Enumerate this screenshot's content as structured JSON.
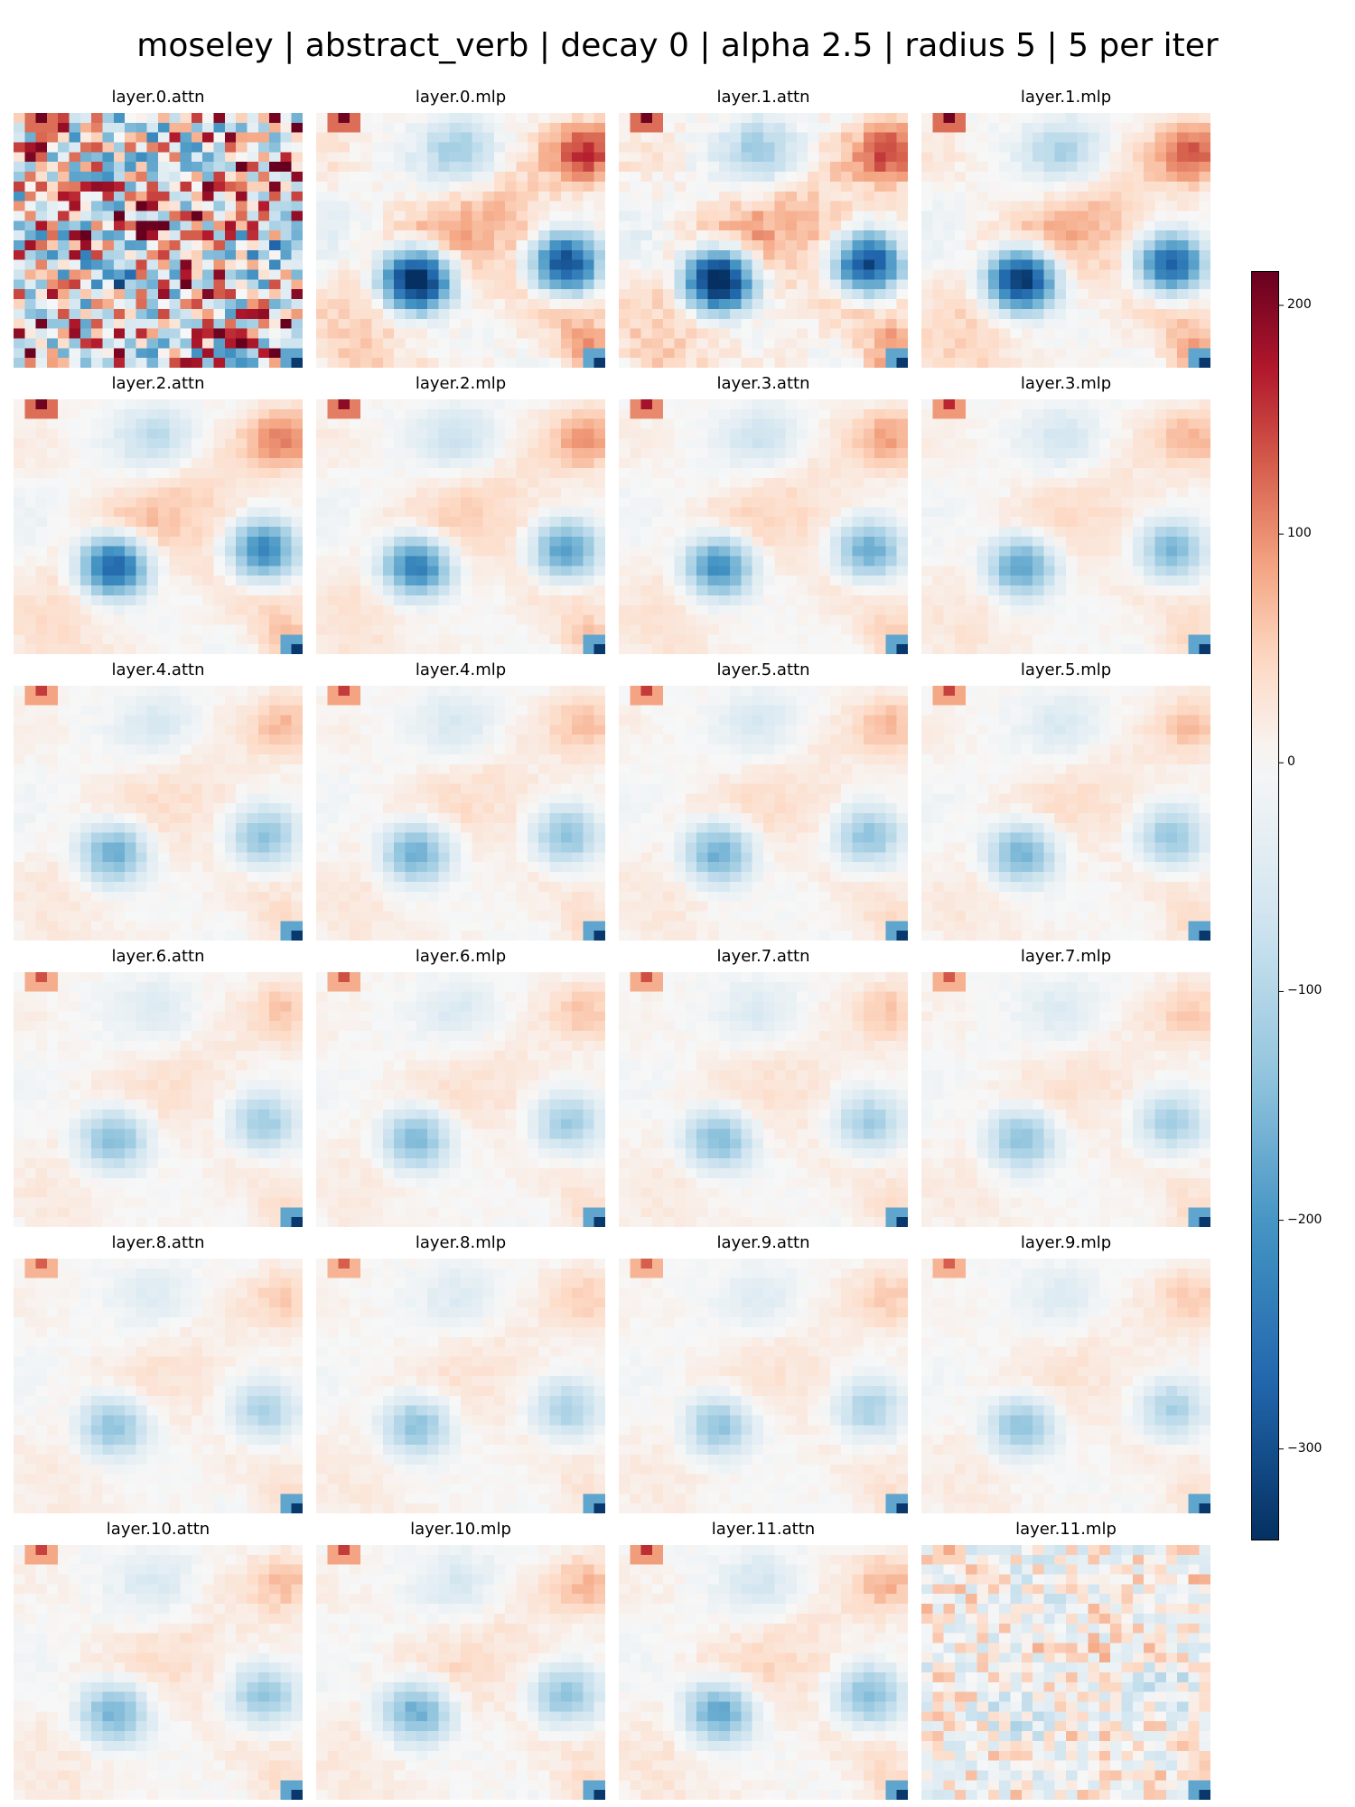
{
  "chart_data": {
    "type": "heatmap",
    "title": "moseley | abstract_verb | decay 0 | alpha 2.5 | radius 5 | 5 per iter",
    "grid_size": 26,
    "colormap": "RdBu_r",
    "vmin": -340,
    "vmax": 215,
    "colorbar_ticks": [
      {
        "value": 200,
        "label": "200"
      },
      {
        "value": 100,
        "label": "100"
      },
      {
        "value": 0,
        "label": "0"
      },
      {
        "value": -100,
        "label": "−100"
      },
      {
        "value": -200,
        "label": "−200"
      },
      {
        "value": -300,
        "label": "−300"
      }
    ],
    "panels": [
      {
        "title": "layer.0.attn",
        "strength": 1.15,
        "noise": 1.0
      },
      {
        "title": "layer.0.mlp",
        "strength": 1.2,
        "noise": 0.08
      },
      {
        "title": "layer.1.attn",
        "strength": 1.2,
        "noise": 0.1
      },
      {
        "title": "layer.1.mlp",
        "strength": 1.05,
        "noise": 0.06
      },
      {
        "title": "layer.2.attn",
        "strength": 0.85,
        "noise": 0.04
      },
      {
        "title": "layer.2.mlp",
        "strength": 0.72,
        "noise": 0.04
      },
      {
        "title": "layer.3.attn",
        "strength": 0.66,
        "noise": 0.04
      },
      {
        "title": "layer.3.mlp",
        "strength": 0.58,
        "noise": 0.04
      },
      {
        "title": "layer.4.attn",
        "strength": 0.52,
        "noise": 0.04
      },
      {
        "title": "layer.4.mlp",
        "strength": 0.52,
        "noise": 0.04
      },
      {
        "title": "layer.5.attn",
        "strength": 0.52,
        "noise": 0.04
      },
      {
        "title": "layer.5.mlp",
        "strength": 0.5,
        "noise": 0.04
      },
      {
        "title": "layer.6.attn",
        "strength": 0.46,
        "noise": 0.04
      },
      {
        "title": "layer.6.mlp",
        "strength": 0.46,
        "noise": 0.04
      },
      {
        "title": "layer.7.attn",
        "strength": 0.46,
        "noise": 0.04
      },
      {
        "title": "layer.7.mlp",
        "strength": 0.44,
        "noise": 0.04
      },
      {
        "title": "layer.8.attn",
        "strength": 0.42,
        "noise": 0.04
      },
      {
        "title": "layer.8.mlp",
        "strength": 0.42,
        "noise": 0.04
      },
      {
        "title": "layer.9.attn",
        "strength": 0.42,
        "noise": 0.04
      },
      {
        "title": "layer.9.mlp",
        "strength": 0.42,
        "noise": 0.04
      },
      {
        "title": "layer.10.attn",
        "strength": 0.5,
        "noise": 0.05
      },
      {
        "title": "layer.10.mlp",
        "strength": 0.52,
        "noise": 0.05
      },
      {
        "title": "layer.11.attn",
        "strength": 0.56,
        "noise": 0.05
      },
      {
        "title": "layer.11.mlp",
        "strength": 0.2,
        "noise": 0.35
      }
    ]
  }
}
